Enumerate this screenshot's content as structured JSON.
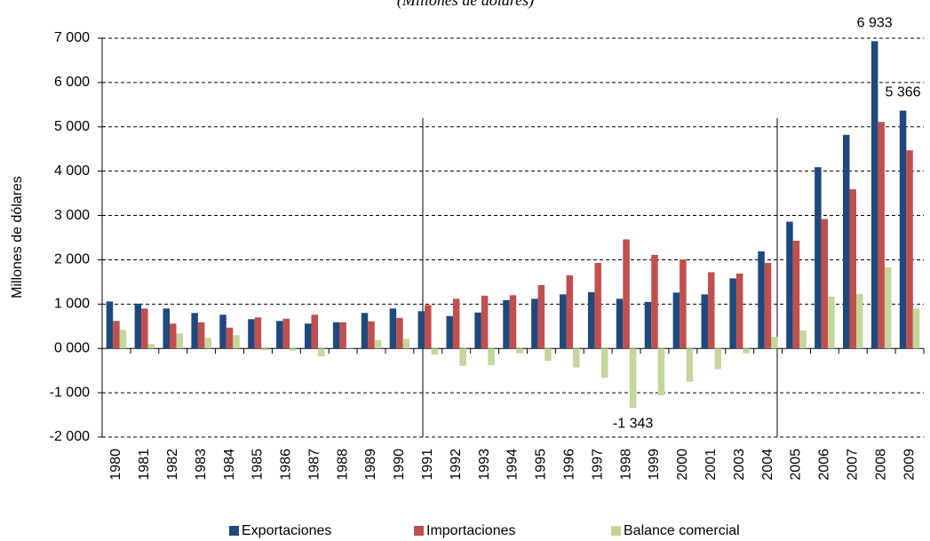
{
  "chart_data": {
    "type": "bar",
    "subtitle": "(Millones de dólares)",
    "y_label": "Millones de dólares",
    "categories": [
      "1980",
      "1981",
      "1982",
      "1983",
      "1984",
      "1985",
      "1986",
      "1987",
      "1988",
      "1989",
      "1990",
      "1991",
      "1992",
      "1993",
      "1994",
      "1995",
      "1996",
      "1997",
      "1998",
      "1999",
      "2000",
      "2001",
      "2003",
      "2004",
      "2005",
      "2006",
      "2007",
      "2008",
      "2009"
    ],
    "series": [
      {
        "name": "Exportaciones",
        "color": "#1f497d",
        "values": [
          1060,
          1010,
          900,
          800,
          760,
          660,
          620,
          560,
          590,
          800,
          900,
          840,
          730,
          810,
          1090,
          1120,
          1220,
          1270,
          1120,
          1050,
          1260,
          1220,
          1580,
          2190,
          2860,
          4090,
          4820,
          6933,
          5366
        ],
        "value_labels": [
          null,
          null,
          null,
          null,
          null,
          null,
          null,
          null,
          null,
          null,
          null,
          null,
          null,
          null,
          null,
          null,
          null,
          null,
          null,
          null,
          null,
          null,
          null,
          null,
          null,
          null,
          null,
          "6 933",
          "5 366"
        ]
      },
      {
        "name": "Importaciones",
        "color": "#c0504d",
        "values": [
          620,
          900,
          560,
          590,
          470,
          700,
          670,
          760,
          590,
          610,
          690,
          980,
          1120,
          1190,
          1200,
          1430,
          1650,
          1930,
          2460,
          2110,
          2010,
          1720,
          1690,
          1930,
          2430,
          2920,
          3590,
          5110,
          4470
        ]
      },
      {
        "name": "Balance comercial",
        "color": "#c3d69b",
        "values": [
          420,
          100,
          340,
          240,
          300,
          -40,
          -50,
          -180,
          10,
          190,
          220,
          -140,
          -390,
          -380,
          -110,
          -280,
          -430,
          -660,
          -1343,
          -1060,
          -750,
          -470,
          -110,
          260,
          410,
          1170,
          1230,
          1830,
          900
        ],
        "value_labels": [
          null,
          null,
          null,
          null,
          null,
          null,
          null,
          null,
          null,
          null,
          null,
          null,
          null,
          null,
          null,
          null,
          null,
          null,
          "-1 343",
          null,
          null,
          null,
          null,
          null,
          null,
          null,
          null,
          null,
          null
        ]
      }
    ],
    "ylim": [
      -2000,
      7000
    ],
    "yticks": [
      {
        "value": -2000,
        "label": "-2 000"
      },
      {
        "value": -1000,
        "label": "-1 000"
      },
      {
        "value": 0,
        "label": "0 000"
      },
      {
        "value": 1000,
        "label": "1 000"
      },
      {
        "value": 2000,
        "label": "2 000"
      },
      {
        "value": 3000,
        "label": "3 000"
      },
      {
        "value": 4000,
        "label": "4 000"
      },
      {
        "value": 5000,
        "label": "5 000"
      },
      {
        "value": 6000,
        "label": "6 000"
      },
      {
        "value": 7000,
        "label": "7 000"
      }
    ],
    "grid": true,
    "legend": "bottom"
  }
}
